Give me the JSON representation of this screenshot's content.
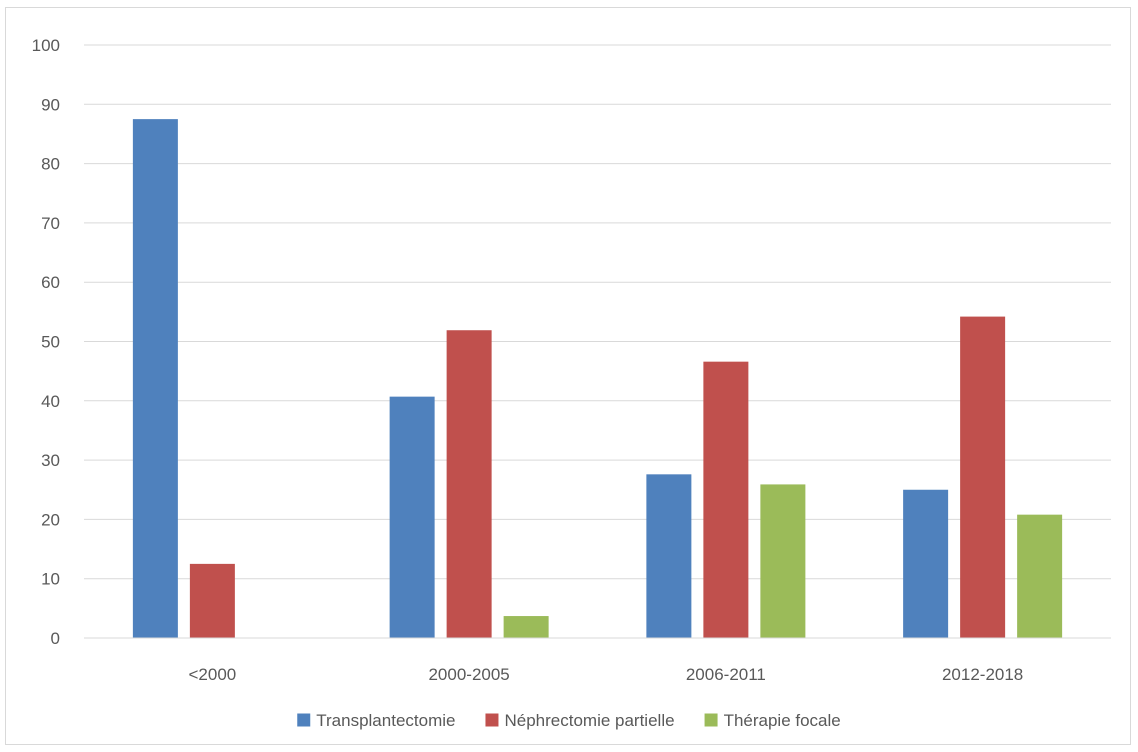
{
  "chart_data": {
    "type": "bar",
    "title": "",
    "xlabel": "",
    "ylabel": "",
    "categories": [
      "<2000",
      "2000-2005",
      "2006-2011",
      "2012-2018"
    ],
    "ylim": [
      0,
      100
    ],
    "yticks": [
      0,
      10,
      20,
      30,
      40,
      50,
      60,
      70,
      80,
      90,
      100
    ],
    "grid": true,
    "legend_position": "bottom",
    "series": [
      {
        "name": "Transplantectomie",
        "color": "#4f81bd",
        "values": [
          87.5,
          40.7,
          27.6,
          25.0
        ]
      },
      {
        "name": "Néphrectomie partielle",
        "color": "#c0504d",
        "values": [
          12.5,
          51.9,
          46.6,
          54.2
        ]
      },
      {
        "name": "Thérapie focale",
        "color": "#9bbb59",
        "values": [
          0,
          3.7,
          25.9,
          20.8
        ]
      }
    ]
  }
}
